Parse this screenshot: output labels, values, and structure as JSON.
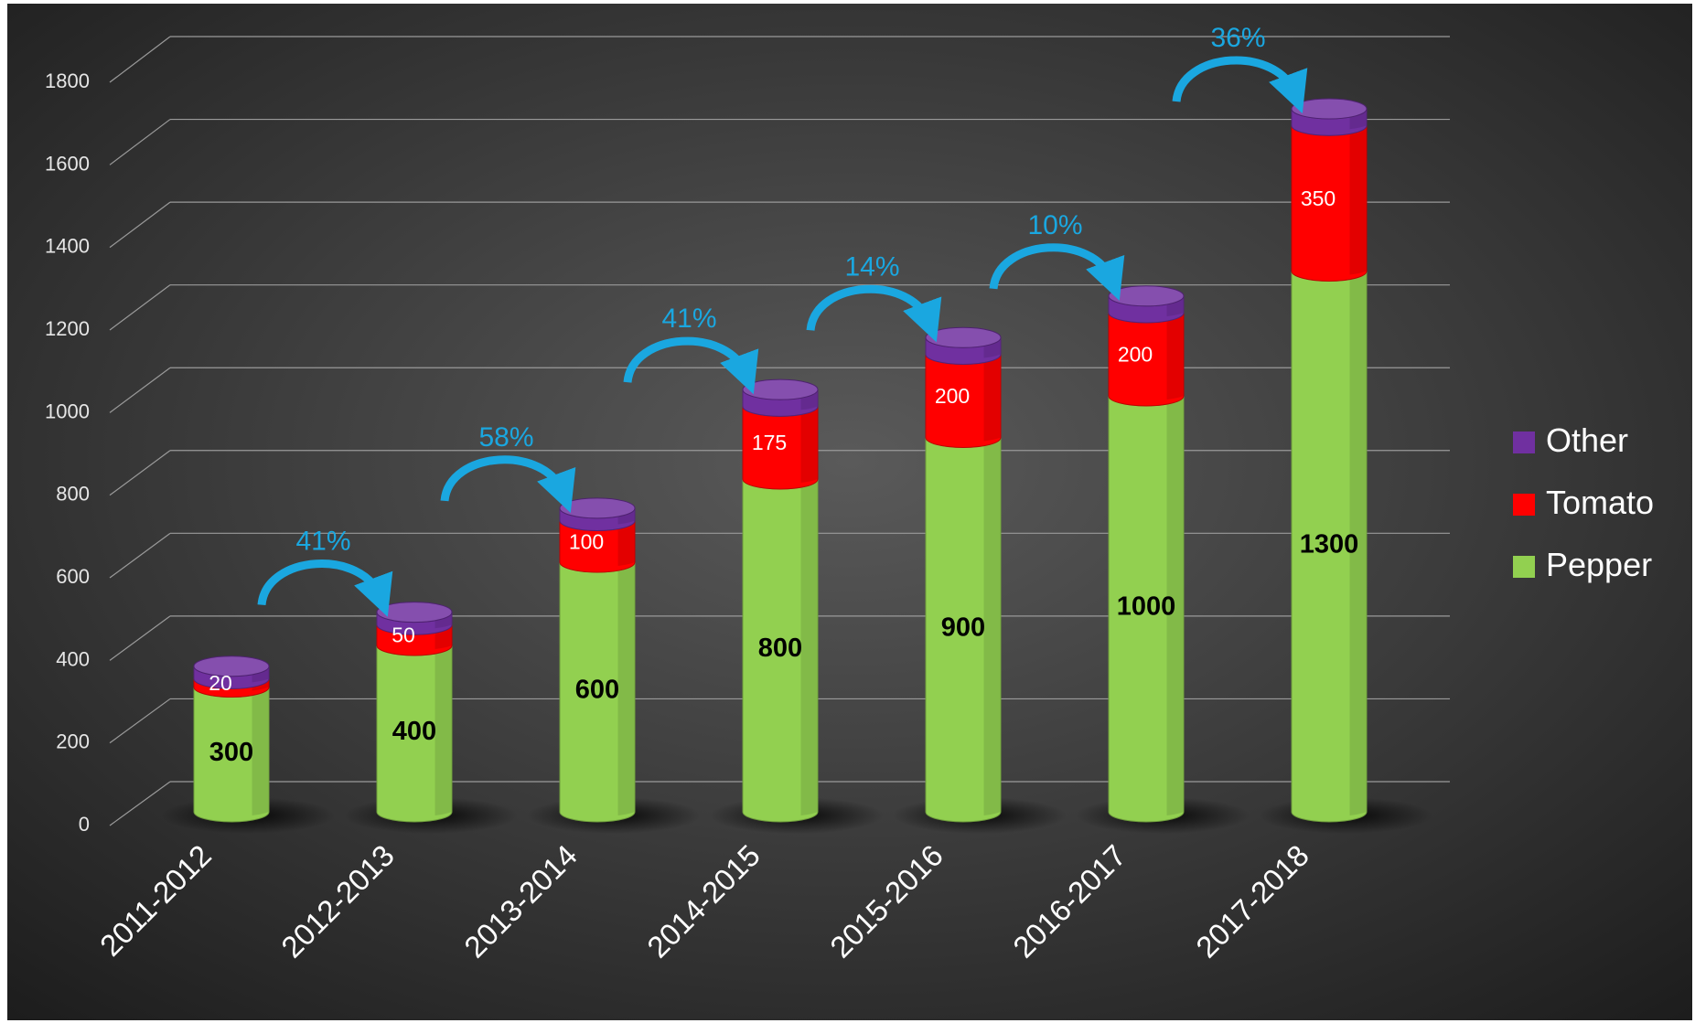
{
  "chart_data": {
    "type": "bar",
    "stacked": true,
    "three_d": true,
    "categories": [
      "2011-2012",
      "2012-2013",
      "2013-2014",
      "2014-2015",
      "2015-2016",
      "2016-2017",
      "2017-2018"
    ],
    "series": [
      {
        "name": "Pepper",
        "color": "#92d050",
        "values": [
          300,
          400,
          600,
          800,
          900,
          1000,
          1300
        ]
      },
      {
        "name": "Tomato",
        "color": "#ff0000",
        "values": [
          20,
          50,
          100,
          175,
          200,
          200,
          350
        ]
      },
      {
        "name": "Other",
        "color": "#7030a0",
        "values": [
          30,
          30,
          30,
          40,
          40,
          40,
          40
        ]
      }
    ],
    "data_labels": {
      "Pepper": [
        "300",
        "400",
        "600",
        "800",
        "900",
        "1000",
        "1300"
      ],
      "Tomato": [
        "20",
        "50",
        "100",
        "175",
        "200",
        "200",
        "350"
      ]
    },
    "growth_annotations": [
      "41%",
      "58%",
      "41%",
      "14%",
      "10%",
      "36%"
    ],
    "y_ticks": [
      0,
      200,
      400,
      600,
      800,
      1000,
      1200,
      1400,
      1600,
      1800
    ],
    "ylim": [
      0,
      1800
    ],
    "grid": true,
    "legend": [
      "Other",
      "Tomato",
      "Pepper"
    ],
    "legend_position": "right",
    "background": "#3a3a3a",
    "annotation_color": "#1aa7e0"
  }
}
